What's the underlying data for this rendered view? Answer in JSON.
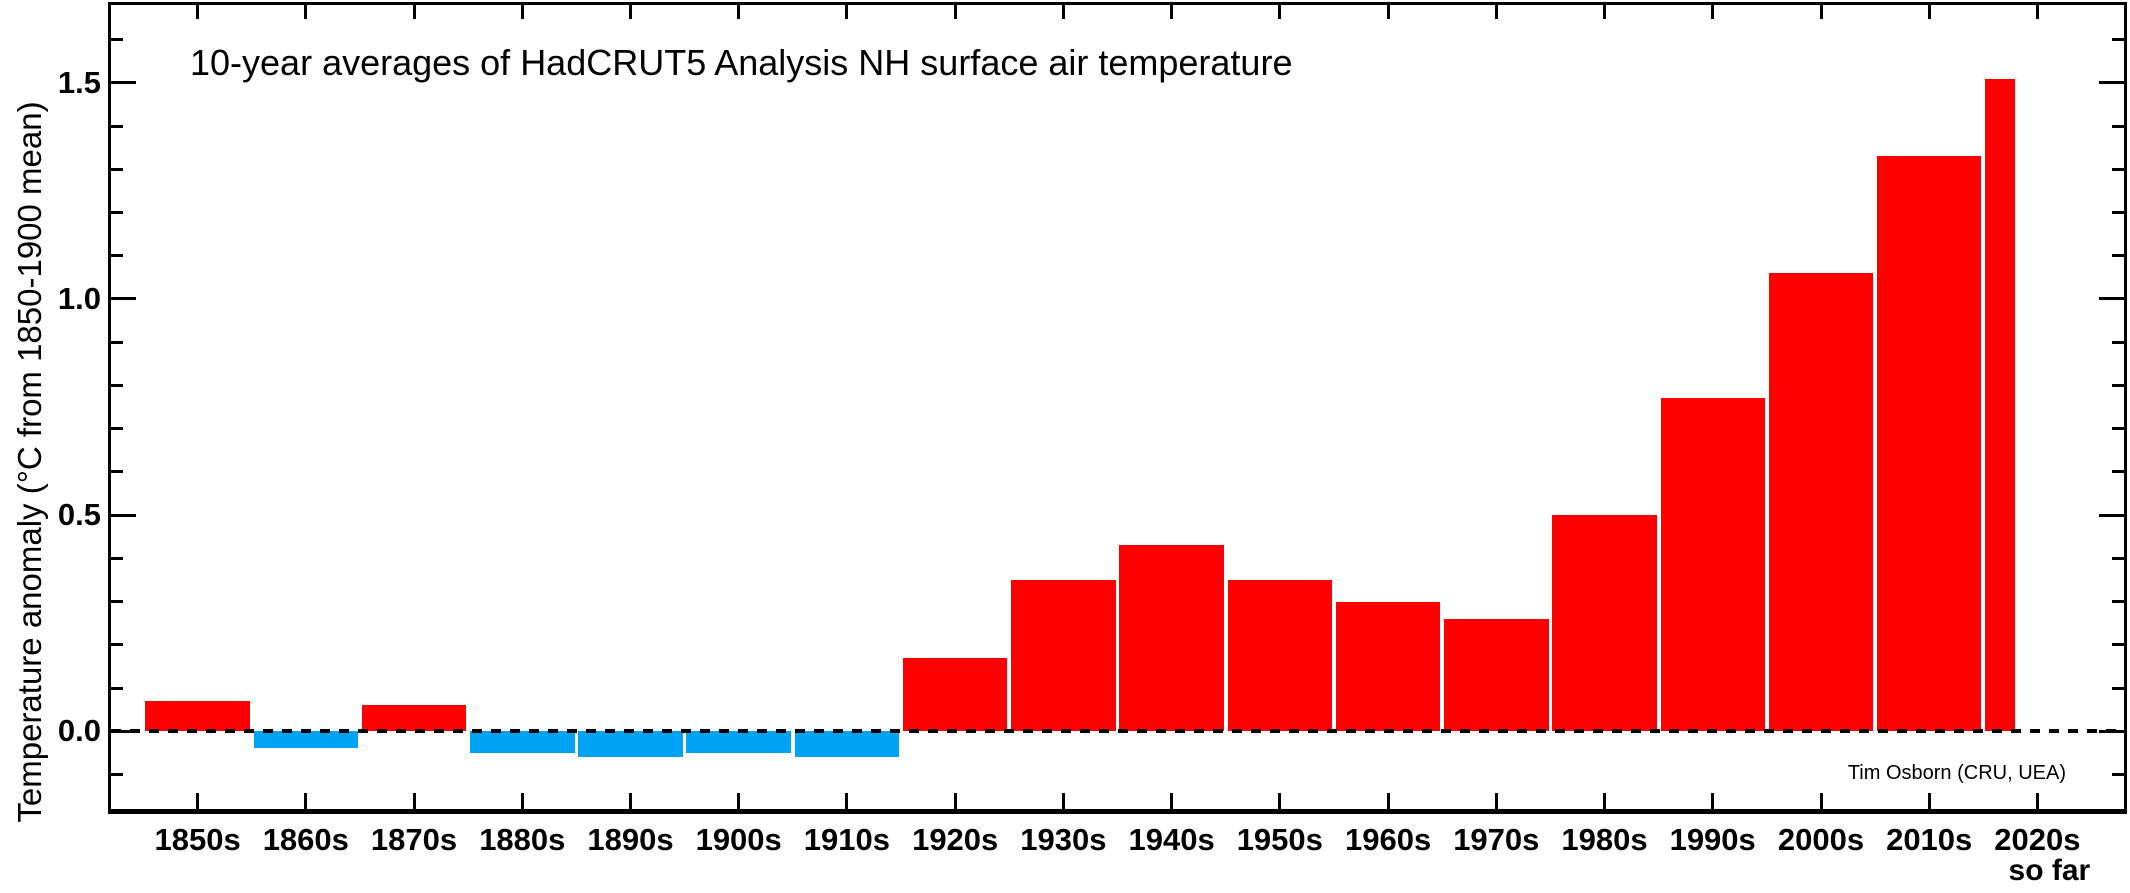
{
  "chart_data": {
    "type": "bar",
    "title": "10-year averages of HadCRUT5 Analysis NH surface air temperature",
    "ylabel": "Temperature anomaly (°C from 1850-1900 mean)",
    "attribution": "Tim Osborn (CRU, UEA)",
    "categories": [
      "1850s",
      "1860s",
      "1870s",
      "1880s",
      "1890s",
      "1900s",
      "1910s",
      "1920s",
      "1930s",
      "1940s",
      "1950s",
      "1960s",
      "1970s",
      "1980s",
      "1990s",
      "2000s",
      "2010s",
      "2020s"
    ],
    "values": [
      0.07,
      -0.04,
      0.06,
      -0.05,
      -0.06,
      -0.05,
      -0.06,
      0.17,
      0.35,
      0.43,
      0.35,
      0.3,
      0.26,
      0.5,
      0.77,
      1.06,
      1.33,
      1.51
    ],
    "last_category_note": "so far",
    "decade_start_years": [
      1850,
      1860,
      1870,
      1880,
      1890,
      1900,
      1910,
      1920,
      1930,
      1940,
      1950,
      1960,
      1970,
      1980,
      1990,
      2000,
      2010,
      2020
    ],
    "x_range": [
      1847,
      2033
    ],
    "ylim": [
      -0.18,
      1.68
    ],
    "ytick_labels": [
      "0.0",
      "0.5",
      "1.0",
      "1.5"
    ],
    "ytick_values": [
      0,
      0.5,
      1.0,
      1.5
    ],
    "minor_ytick_step": 0.1,
    "bar_inset_years": 0.17,
    "partial_last_bar_years": 2.9,
    "colors": {
      "positive_bar": "#ff0000",
      "negative_bar": "#00a2f4",
      "axis": "#000000",
      "background": "#ffffff"
    },
    "zero_line_style": "dashed",
    "grid": "off",
    "legend": "none"
  }
}
